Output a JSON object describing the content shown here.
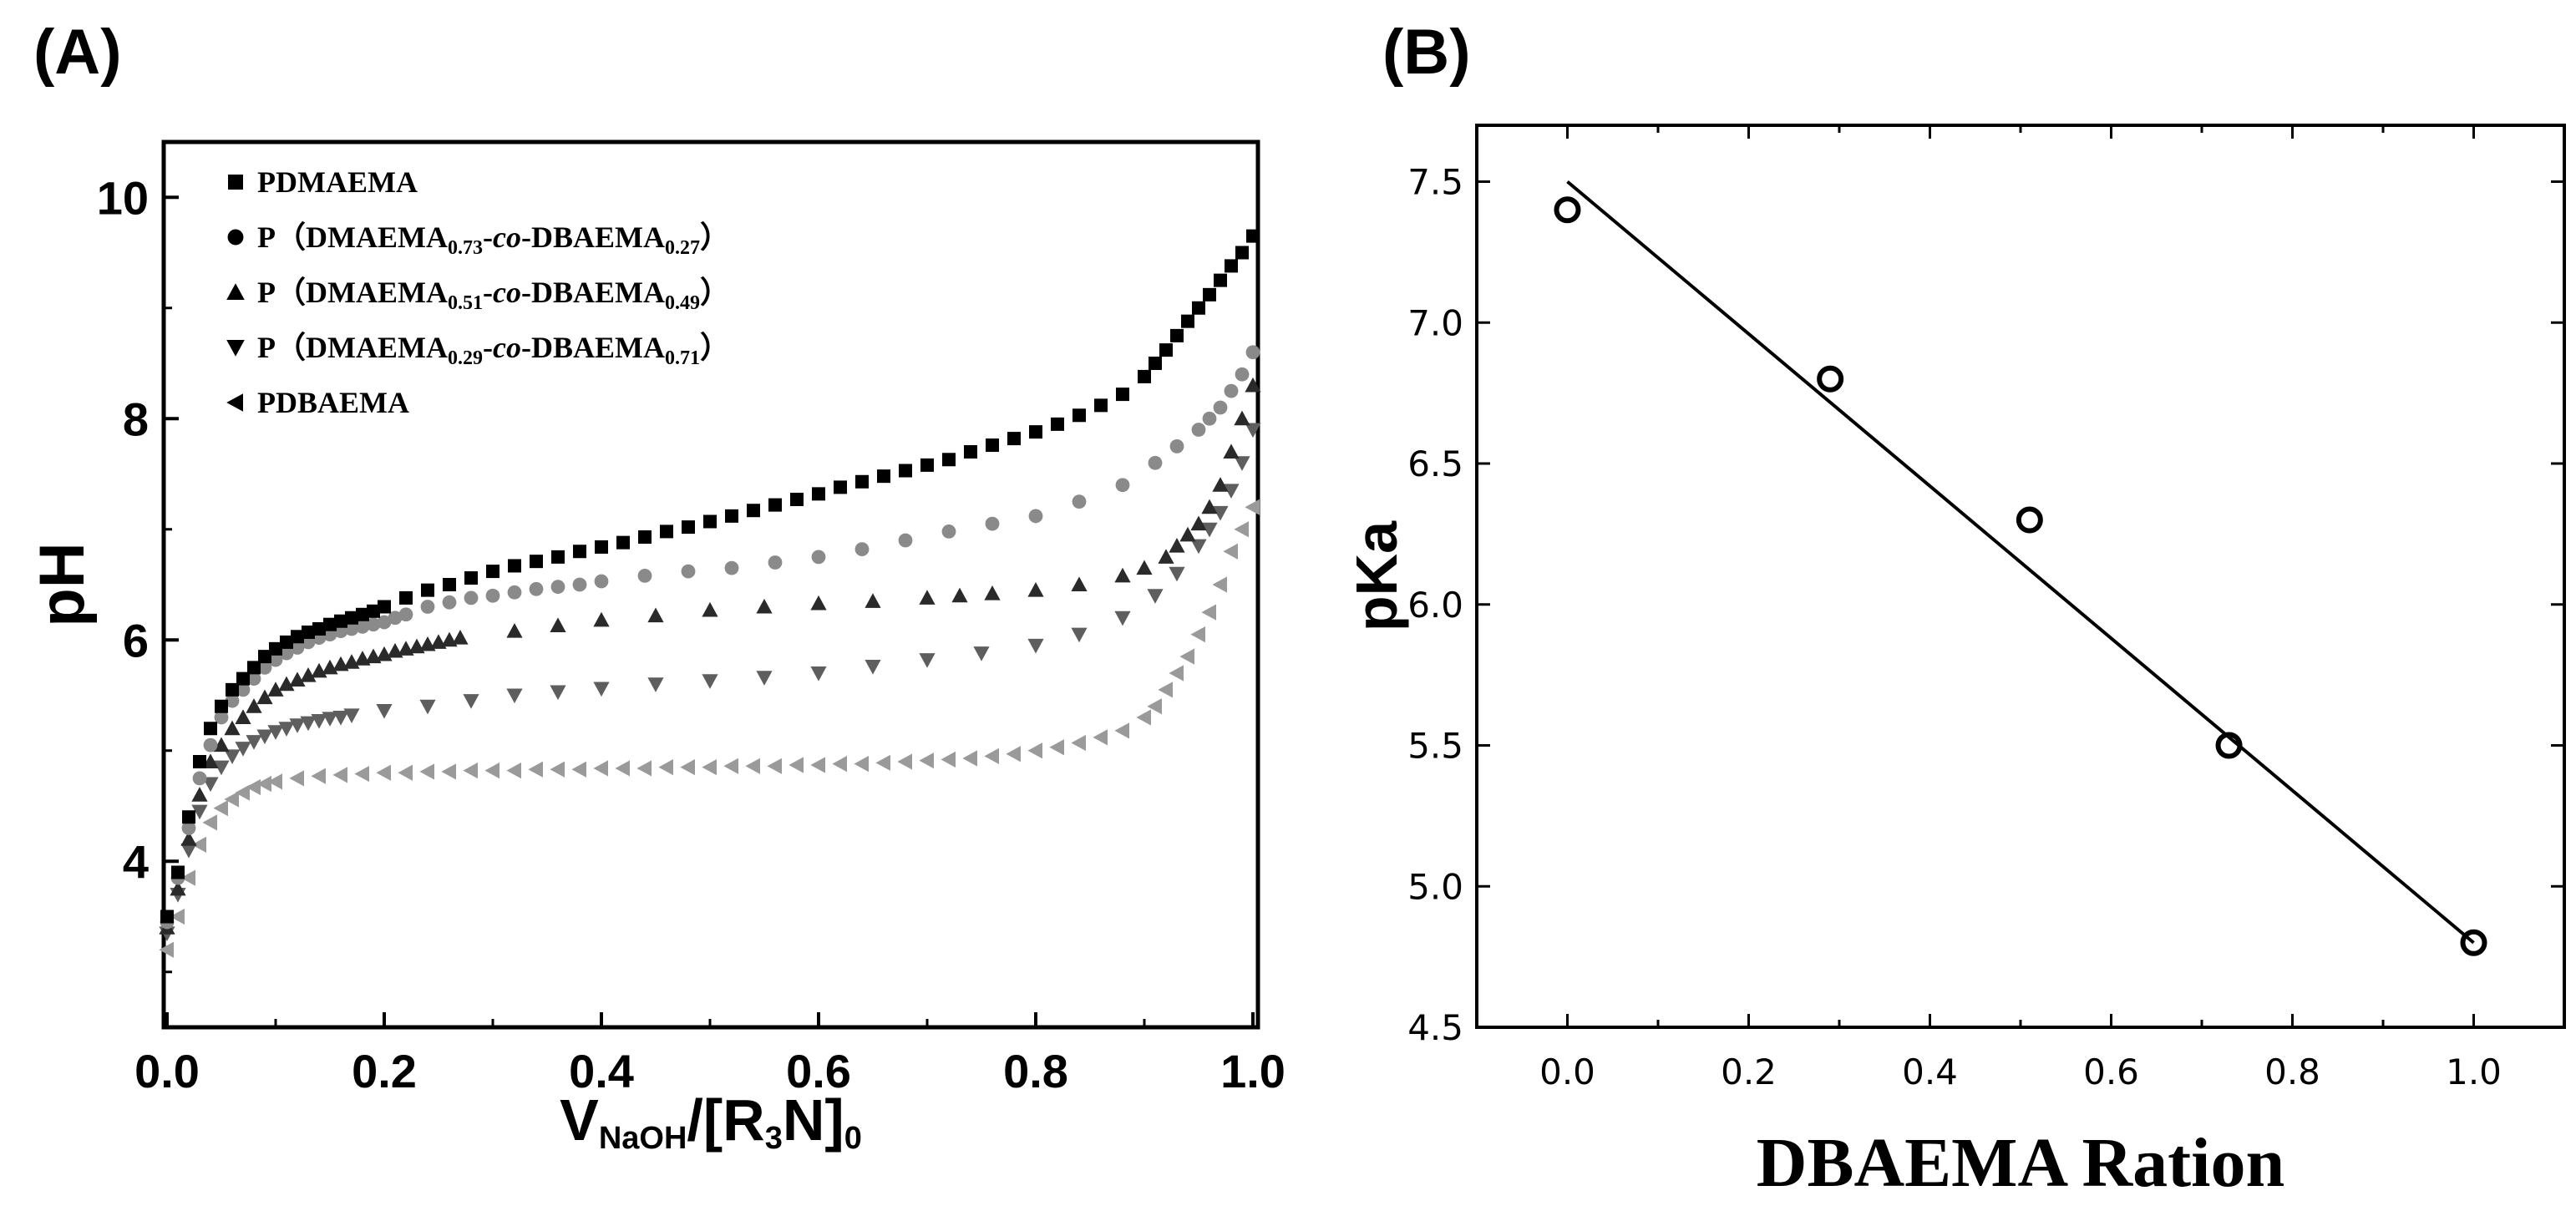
{
  "chart_data": [
    {
      "panel": "(A)",
      "type": "scatter",
      "xlabel": {
        "main": "V",
        "sub1": "NaOH",
        "mid": "/[R",
        "sub2": "3",
        "mid2": "N]",
        "sub3": "0"
      },
      "ylabel": "pH",
      "xlim": [
        0.0,
        1.0
      ],
      "ylim": [
        2.5,
        10.5
      ],
      "xticks": [
        "0.0",
        "0.2",
        "0.4",
        "0.6",
        "0.8",
        "1.0"
      ],
      "xtick_values": [
        0.0,
        0.2,
        0.4,
        0.6,
        0.8,
        1.0
      ],
      "yticks": [
        "4",
        "6",
        "8",
        "10"
      ],
      "ytick_values": [
        4,
        6,
        8,
        10
      ],
      "legend": [
        {
          "parts": [
            {
              "t": "PDMAEMA"
            }
          ]
        },
        {
          "parts": [
            {
              "t": "P（DMAEMA"
            },
            {
              "t": "0.73",
              "sub": true
            },
            {
              "t": "-"
            },
            {
              "t": "co",
              "it": true
            },
            {
              "t": "-DBAEMA"
            },
            {
              "t": "0.27",
              "sub": true
            },
            {
              "t": "）"
            }
          ]
        },
        {
          "parts": [
            {
              "t": "P（DMAEMA"
            },
            {
              "t": "0.51",
              "sub": true
            },
            {
              "t": "-"
            },
            {
              "t": "co",
              "it": true
            },
            {
              "t": "-DBAEMA"
            },
            {
              "t": "0.49",
              "sub": true
            },
            {
              "t": "）"
            }
          ]
        },
        {
          "parts": [
            {
              "t": "P（DMAEMA"
            },
            {
              "t": "0.29",
              "sub": true
            },
            {
              "t": "-"
            },
            {
              "t": "co",
              "it": true
            },
            {
              "t": "-DBAEMA"
            },
            {
              "t": "0.71",
              "sub": true
            },
            {
              "t": "）"
            }
          ]
        },
        {
          "parts": [
            {
              "t": "PDBAEMA"
            }
          ]
        }
      ],
      "series": [
        {
          "name": "PDMAEMA",
          "marker": "square",
          "color": "#000000",
          "x": [
            0.0,
            0.01,
            0.02,
            0.03,
            0.04,
            0.05,
            0.06,
            0.07,
            0.08,
            0.09,
            0.1,
            0.11,
            0.12,
            0.13,
            0.14,
            0.15,
            0.16,
            0.17,
            0.18,
            0.19,
            0.2,
            0.22,
            0.24,
            0.26,
            0.28,
            0.3,
            0.32,
            0.34,
            0.36,
            0.38,
            0.4,
            0.42,
            0.44,
            0.46,
            0.48,
            0.5,
            0.52,
            0.54,
            0.56,
            0.58,
            0.6,
            0.62,
            0.64,
            0.66,
            0.68,
            0.7,
            0.72,
            0.74,
            0.76,
            0.78,
            0.8,
            0.82,
            0.84,
            0.86,
            0.88,
            0.9,
            0.91,
            0.92,
            0.93,
            0.94,
            0.95,
            0.96,
            0.97,
            0.98,
            0.99,
            1.0
          ],
          "y": [
            3.5,
            3.9,
            4.4,
            4.9,
            5.2,
            5.4,
            5.55,
            5.65,
            5.75,
            5.85,
            5.92,
            5.98,
            6.03,
            6.07,
            6.1,
            6.14,
            6.17,
            6.2,
            6.23,
            6.26,
            6.3,
            6.38,
            6.45,
            6.5,
            6.56,
            6.62,
            6.67,
            6.71,
            6.75,
            6.8,
            6.84,
            6.88,
            6.93,
            6.98,
            7.02,
            7.07,
            7.12,
            7.17,
            7.22,
            7.27,
            7.32,
            7.38,
            7.43,
            7.48,
            7.53,
            7.58,
            7.63,
            7.7,
            7.76,
            7.82,
            7.88,
            7.95,
            8.03,
            8.12,
            8.22,
            8.38,
            8.5,
            8.62,
            8.75,
            8.88,
            9.0,
            9.12,
            9.25,
            9.38,
            9.5,
            9.65
          ]
        },
        {
          "name": "P(DMAEMA0.73-co-DBAEMA0.27)",
          "marker": "circle",
          "color": "#8a8a8a",
          "x": [
            0.0,
            0.01,
            0.02,
            0.03,
            0.04,
            0.05,
            0.06,
            0.07,
            0.08,
            0.09,
            0.1,
            0.11,
            0.12,
            0.13,
            0.14,
            0.15,
            0.16,
            0.17,
            0.18,
            0.19,
            0.2,
            0.21,
            0.22,
            0.24,
            0.26,
            0.28,
            0.3,
            0.32,
            0.34,
            0.36,
            0.38,
            0.4,
            0.44,
            0.48,
            0.52,
            0.56,
            0.6,
            0.64,
            0.68,
            0.72,
            0.76,
            0.8,
            0.84,
            0.88,
            0.91,
            0.93,
            0.95,
            0.96,
            0.97,
            0.98,
            0.99,
            1.0
          ],
          "y": [
            3.45,
            3.85,
            4.3,
            4.75,
            5.05,
            5.3,
            5.45,
            5.55,
            5.65,
            5.75,
            5.82,
            5.88,
            5.93,
            5.98,
            6.02,
            6.05,
            6.08,
            6.1,
            6.12,
            6.14,
            6.16,
            6.2,
            6.23,
            6.3,
            6.34,
            6.38,
            6.4,
            6.43,
            6.46,
            6.48,
            6.5,
            6.53,
            6.58,
            6.62,
            6.65,
            6.7,
            6.75,
            6.82,
            6.9,
            6.98,
            7.05,
            7.12,
            7.25,
            7.4,
            7.6,
            7.75,
            7.9,
            8.0,
            8.1,
            8.25,
            8.4,
            8.6
          ]
        },
        {
          "name": "P(DMAEMA0.51-co-DBAEMA0.49)",
          "marker": "triangle-up",
          "color": "#2a2a2a",
          "x": [
            0.0,
            0.01,
            0.02,
            0.03,
            0.04,
            0.05,
            0.06,
            0.07,
            0.08,
            0.09,
            0.1,
            0.11,
            0.12,
            0.13,
            0.14,
            0.15,
            0.16,
            0.17,
            0.18,
            0.19,
            0.2,
            0.21,
            0.22,
            0.23,
            0.24,
            0.25,
            0.26,
            0.27,
            0.32,
            0.36,
            0.4,
            0.45,
            0.5,
            0.55,
            0.6,
            0.65,
            0.7,
            0.73,
            0.76,
            0.8,
            0.84,
            0.88,
            0.9,
            0.92,
            0.93,
            0.94,
            0.95,
            0.96,
            0.97,
            0.98,
            0.99,
            1.0
          ],
          "y": [
            3.4,
            3.75,
            4.2,
            4.6,
            4.9,
            5.05,
            5.2,
            5.3,
            5.4,
            5.48,
            5.55,
            5.6,
            5.64,
            5.68,
            5.72,
            5.75,
            5.78,
            5.8,
            5.83,
            5.85,
            5.87,
            5.9,
            5.92,
            5.94,
            5.96,
            5.98,
            6.0,
            6.02,
            6.08,
            6.13,
            6.18,
            6.22,
            6.27,
            6.3,
            6.33,
            6.35,
            6.38,
            6.4,
            6.42,
            6.45,
            6.5,
            6.58,
            6.65,
            6.75,
            6.85,
            6.95,
            7.05,
            7.2,
            7.4,
            7.7,
            8.0,
            8.3
          ]
        },
        {
          "name": "P(DMAEMA0.29-co-DBAEMA0.71)",
          "marker": "triangle-down",
          "color": "#5e5e5e",
          "x": [
            0.0,
            0.01,
            0.02,
            0.03,
            0.04,
            0.05,
            0.06,
            0.07,
            0.08,
            0.09,
            0.1,
            0.11,
            0.12,
            0.13,
            0.14,
            0.15,
            0.16,
            0.17,
            0.2,
            0.24,
            0.28,
            0.32,
            0.36,
            0.4,
            0.45,
            0.5,
            0.55,
            0.6,
            0.65,
            0.7,
            0.75,
            0.8,
            0.84,
            0.88,
            0.91,
            0.93,
            0.95,
            0.96,
            0.97,
            0.98,
            0.99,
            1.0
          ],
          "y": [
            3.35,
            3.7,
            4.1,
            4.45,
            4.7,
            4.85,
            4.95,
            5.02,
            5.08,
            5.13,
            5.17,
            5.2,
            5.23,
            5.25,
            5.27,
            5.29,
            5.3,
            5.32,
            5.36,
            5.4,
            5.45,
            5.5,
            5.53,
            5.56,
            5.6,
            5.63,
            5.66,
            5.7,
            5.76,
            5.82,
            5.88,
            5.95,
            6.05,
            6.2,
            6.4,
            6.6,
            6.85,
            7.0,
            7.15,
            7.35,
            7.6,
            7.9
          ]
        },
        {
          "name": "PDBAEMA",
          "marker": "triangle-left",
          "color": "#9a9a9a",
          "x": [
            0.0,
            0.01,
            0.02,
            0.03,
            0.04,
            0.05,
            0.06,
            0.07,
            0.08,
            0.09,
            0.1,
            0.12,
            0.14,
            0.16,
            0.18,
            0.2,
            0.22,
            0.24,
            0.26,
            0.28,
            0.3,
            0.32,
            0.34,
            0.36,
            0.38,
            0.4,
            0.42,
            0.44,
            0.46,
            0.48,
            0.5,
            0.52,
            0.54,
            0.56,
            0.58,
            0.6,
            0.62,
            0.64,
            0.66,
            0.68,
            0.7,
            0.72,
            0.74,
            0.76,
            0.78,
            0.8,
            0.82,
            0.84,
            0.86,
            0.88,
            0.9,
            0.91,
            0.92,
            0.93,
            0.94,
            0.95,
            0.96,
            0.97,
            0.98,
            0.99,
            1.0
          ],
          "y": [
            3.2,
            3.5,
            3.85,
            4.15,
            4.35,
            4.48,
            4.56,
            4.62,
            4.67,
            4.7,
            4.72,
            4.75,
            4.77,
            4.78,
            4.79,
            4.8,
            4.8,
            4.81,
            4.81,
            4.82,
            4.82,
            4.82,
            4.83,
            4.83,
            4.83,
            4.84,
            4.84,
            4.84,
            4.85,
            4.85,
            4.85,
            4.86,
            4.86,
            4.86,
            4.87,
            4.87,
            4.88,
            4.88,
            4.89,
            4.9,
            4.91,
            4.92,
            4.93,
            4.95,
            4.97,
            5.0,
            5.03,
            5.07,
            5.12,
            5.18,
            5.3,
            5.4,
            5.55,
            5.7,
            5.85,
            6.05,
            6.25,
            6.5,
            6.8,
            7.0,
            7.2
          ]
        }
      ]
    },
    {
      "panel": "(B)",
      "type": "scatter",
      "xlabel": "DBAEMA Ration",
      "ylabel": "pKa",
      "xlim": [
        -0.1,
        1.1
      ],
      "ylim": [
        4.5,
        7.7
      ],
      "xticks": [
        "0.0",
        "0.2",
        "0.4",
        "0.6",
        "0.8",
        "1.0"
      ],
      "xtick_values": [
        0.0,
        0.2,
        0.4,
        0.6,
        0.8,
        1.0
      ],
      "yticks": [
        "4.5",
        "5.0",
        "5.5",
        "6.0",
        "6.5",
        "7.0",
        "7.5"
      ],
      "ytick_values": [
        4.5,
        5.0,
        5.5,
        6.0,
        6.5,
        7.0,
        7.5
      ],
      "series": [
        {
          "name": "pKa",
          "marker": "open-circle",
          "color": "#000000",
          "x": [
            0.0,
            0.29,
            0.51,
            0.73,
            1.0
          ],
          "y": [
            7.4,
            6.8,
            6.3,
            5.5,
            4.8
          ]
        }
      ],
      "fit_line": {
        "x": [
          0.0,
          1.0
        ],
        "y": [
          7.5,
          4.8
        ]
      }
    }
  ]
}
